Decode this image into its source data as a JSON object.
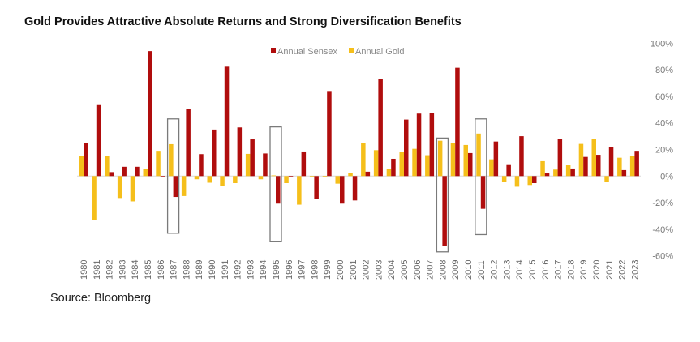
{
  "title": "Gold Provides Attractive Absolute Returns and Strong Diversification Benefits",
  "source": "Source: Bloomberg",
  "chart_data": {
    "type": "bar",
    "title": "",
    "xlabel": "",
    "ylabel": "",
    "ylim": [
      -60,
      100
    ],
    "y_ticks": [
      "100%",
      "80%",
      "60%",
      "40%",
      "20%",
      "0%",
      "-20%",
      "-40%",
      "-60%"
    ],
    "y_axis_position": "right",
    "grid": false,
    "legend_position": "top",
    "categories": [
      "1980",
      "1981",
      "1982",
      "1983",
      "1984",
      "1985",
      "1986",
      "1987",
      "1988",
      "1989",
      "1990",
      "1991",
      "1992",
      "1993",
      "1994",
      "1995",
      "1996",
      "1997",
      "1998",
      "1999",
      "2000",
      "2001",
      "2002",
      "2003",
      "2004",
      "2005",
      "2006",
      "2007",
      "2008",
      "2009",
      "2010",
      "2011",
      "2012",
      "2013",
      "2014",
      "2015",
      "2016",
      "2017",
      "2018",
      "2019",
      "2020",
      "2021",
      "2022",
      "2023"
    ],
    "series": [
      {
        "name": "Annual Gold",
        "color": "#F5BF1B",
        "values": [
          15,
          -33,
          15,
          -16.5,
          -19,
          5.5,
          19,
          24,
          -15,
          -2.4,
          -5,
          -7.7,
          -5.3,
          16.7,
          -2.4,
          0.5,
          -5.3,
          -21.5,
          -0.4,
          -0.2,
          -5.7,
          2.6,
          25,
          19.5,
          5.3,
          18,
          20.5,
          15.7,
          26.6,
          24.8,
          23.4,
          32,
          12.6,
          -4.5,
          -8,
          -6.7,
          11.2,
          4.9,
          8.1,
          24.2,
          27.8,
          -4.1,
          13.8,
          15.4
        ]
      },
      {
        "name": "Annual Sensex",
        "color": "#B00D0D",
        "values": [
          24.6,
          54,
          3,
          7,
          7,
          94,
          -0.8,
          -15.7,
          50.6,
          16.5,
          35,
          82.3,
          36.6,
          27.6,
          17,
          -20.7,
          -0.8,
          18.5,
          -17,
          64,
          -20.7,
          -18.3,
          3.3,
          73,
          13,
          42.5,
          47,
          47.6,
          -52.4,
          81.5,
          17.3,
          -24.6,
          26,
          8.9,
          30,
          -5.3,
          2,
          27.8,
          5.7,
          14.4,
          16,
          21.7,
          4.5,
          19
        ]
      }
    ],
    "highlight_boxes": [
      {
        "category": "1987",
        "range": [
          -43,
          43
        ]
      },
      {
        "category": "1995",
        "range": [
          -49,
          37
        ]
      },
      {
        "category": "2008",
        "range": [
          -57,
          28.6
        ]
      },
      {
        "category": "2011",
        "range": [
          -44,
          43
        ]
      }
    ]
  }
}
